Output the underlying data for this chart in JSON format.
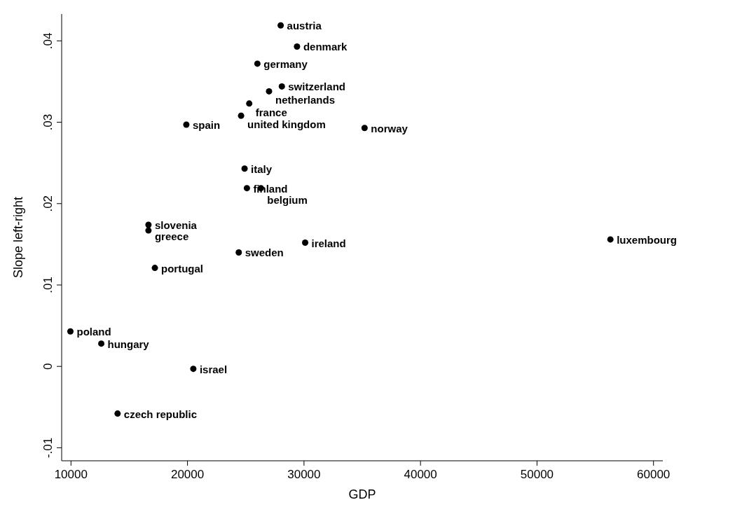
{
  "chart_data": {
    "type": "scatter",
    "xlabel": "GDP",
    "ylabel": "Slope left-right",
    "xlim": [
      9200,
      60800
    ],
    "ylim": [
      -0.0116,
      0.0433
    ],
    "xticks": [
      10000,
      20000,
      30000,
      40000,
      50000,
      60000
    ],
    "yticks": [
      {
        "value": -0.01,
        "label": "-.01"
      },
      {
        "value": 0,
        "label": "0"
      },
      {
        "value": 0.01,
        "label": ".01"
      },
      {
        "value": 0.02,
        "label": ".02"
      },
      {
        "value": 0.03,
        "label": ".03"
      },
      {
        "value": 0.04,
        "label": ".04"
      }
    ],
    "grid": false,
    "marker": "circle",
    "series": [
      {
        "color": "#000000",
        "x": [
          28000,
          29400,
          26000,
          28100,
          27000,
          25300,
          24600,
          19900,
          35200,
          24900,
          25100,
          26300,
          16650,
          16650,
          56300,
          30100,
          24400,
          17200,
          9950,
          12600,
          20500,
          14000
        ],
        "values": [
          0.0419,
          0.0393,
          0.0372,
          0.0344,
          0.0338,
          0.0323,
          0.0308,
          0.0297,
          0.0293,
          0.0243,
          0.0219,
          0.0219,
          0.0174,
          0.0167,
          0.0156,
          0.0152,
          0.014,
          0.0121,
          0.0043,
          0.0028,
          -0.0003,
          -0.0058
        ],
        "value_labels": [
          "austria",
          "denmark",
          "germany",
          "switzerland",
          "netherlands",
          "france",
          "united kingdom",
          "spain",
          "norway",
          "italy",
          "finland",
          "belgium",
          "slovenia",
          "greece",
          "luxembourg",
          "ireland",
          "sweden",
          "portugal",
          "poland",
          "hungary",
          "israel",
          "czech republic"
        ]
      }
    ]
  }
}
